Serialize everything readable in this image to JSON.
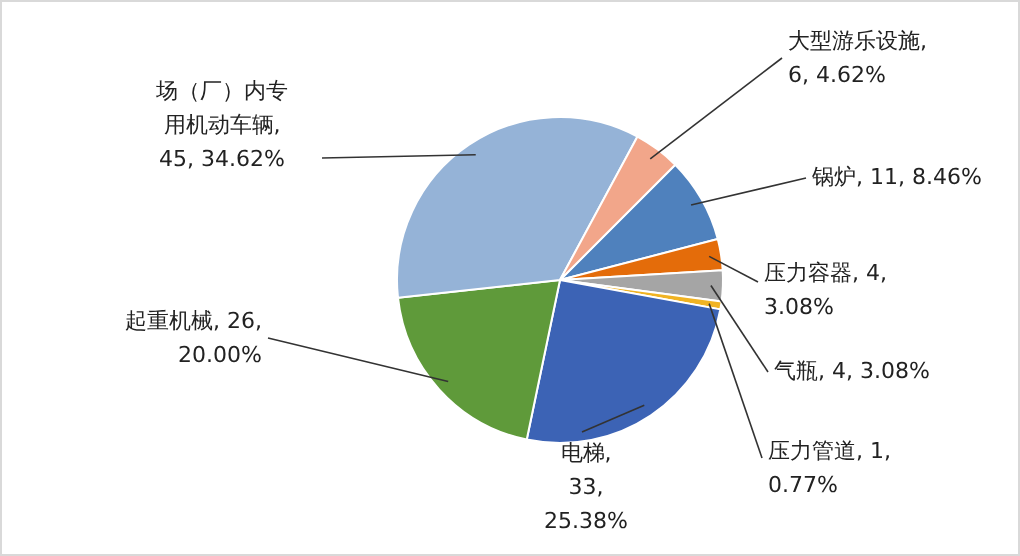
{
  "chart_data": {
    "type": "pie",
    "categories": [
      "锅炉",
      "压力容器",
      "气瓶",
      "压力管道",
      "电梯",
      "起重机械",
      "场（厂）内专用机动车辆",
      "大型游乐设施"
    ],
    "values": [
      11,
      4,
      4,
      1,
      33,
      26,
      45,
      6
    ],
    "value_labels": [
      ", 11, 8.46%",
      ", 4, 3.08%",
      ", 4, 3.08%",
      ", 1, 0.77%",
      ", 33, 25.38%",
      ", 26, 20.00%",
      ", 45, 34.62%",
      ", 6, 4.62%"
    ],
    "colors": [
      "#4f81bd",
      "#e46c0a",
      "#a5a5a5",
      "#f0b323",
      "#3c63b5",
      "#5f9a3a",
      "#95b3d7",
      "#f2a68a"
    ],
    "legend": false
  }
}
